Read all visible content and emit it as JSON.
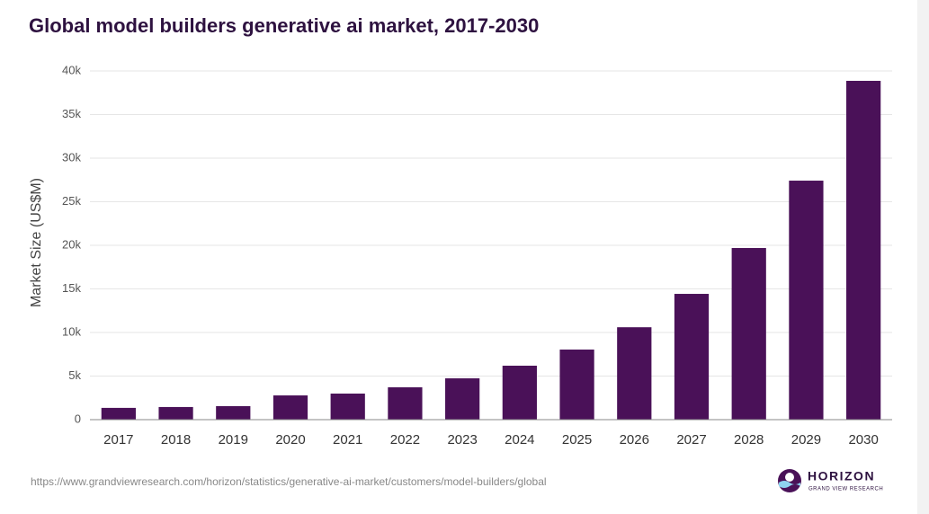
{
  "chart_data": {
    "type": "bar",
    "title": "Global model builders generative ai market, 2017-2030",
    "y_label": "Market Size (US$M)",
    "categories": [
      "2017",
      "2018",
      "2019",
      "2020",
      "2021",
      "2022",
      "2023",
      "2024",
      "2025",
      "2026",
      "2027",
      "2028",
      "2029",
      "2030"
    ],
    "values": [
      1350,
      1450,
      1550,
      2780,
      2990,
      3710,
      4740,
      6190,
      8040,
      10600,
      14430,
      19690,
      27420,
      38870
    ],
    "color": "#4a1158",
    "ylim": [
      0,
      40000
    ],
    "yticks": [
      0,
      {
        "value": 5000,
        "label": "5k"
      },
      {
        "value": 10000,
        "label": "10k"
      },
      {
        "value": 15000,
        "label": "15k"
      },
      {
        "value": 20000,
        "label": "20k"
      },
      {
        "value": 25000,
        "label": "25k"
      },
      {
        "value": 30000,
        "label": "30k"
      },
      {
        "value": 35000,
        "label": "35k"
      },
      {
        "value": 40000,
        "label": "40k"
      }
    ],
    "grid": true
  },
  "footer": {
    "source": "https://www.grandviewresearch.com/horizon/statistics/generative-ai-market/customers/model-builders/global",
    "logo_name": "HORIZON",
    "logo_sub": "GRAND VIEW RESEARCH"
  }
}
